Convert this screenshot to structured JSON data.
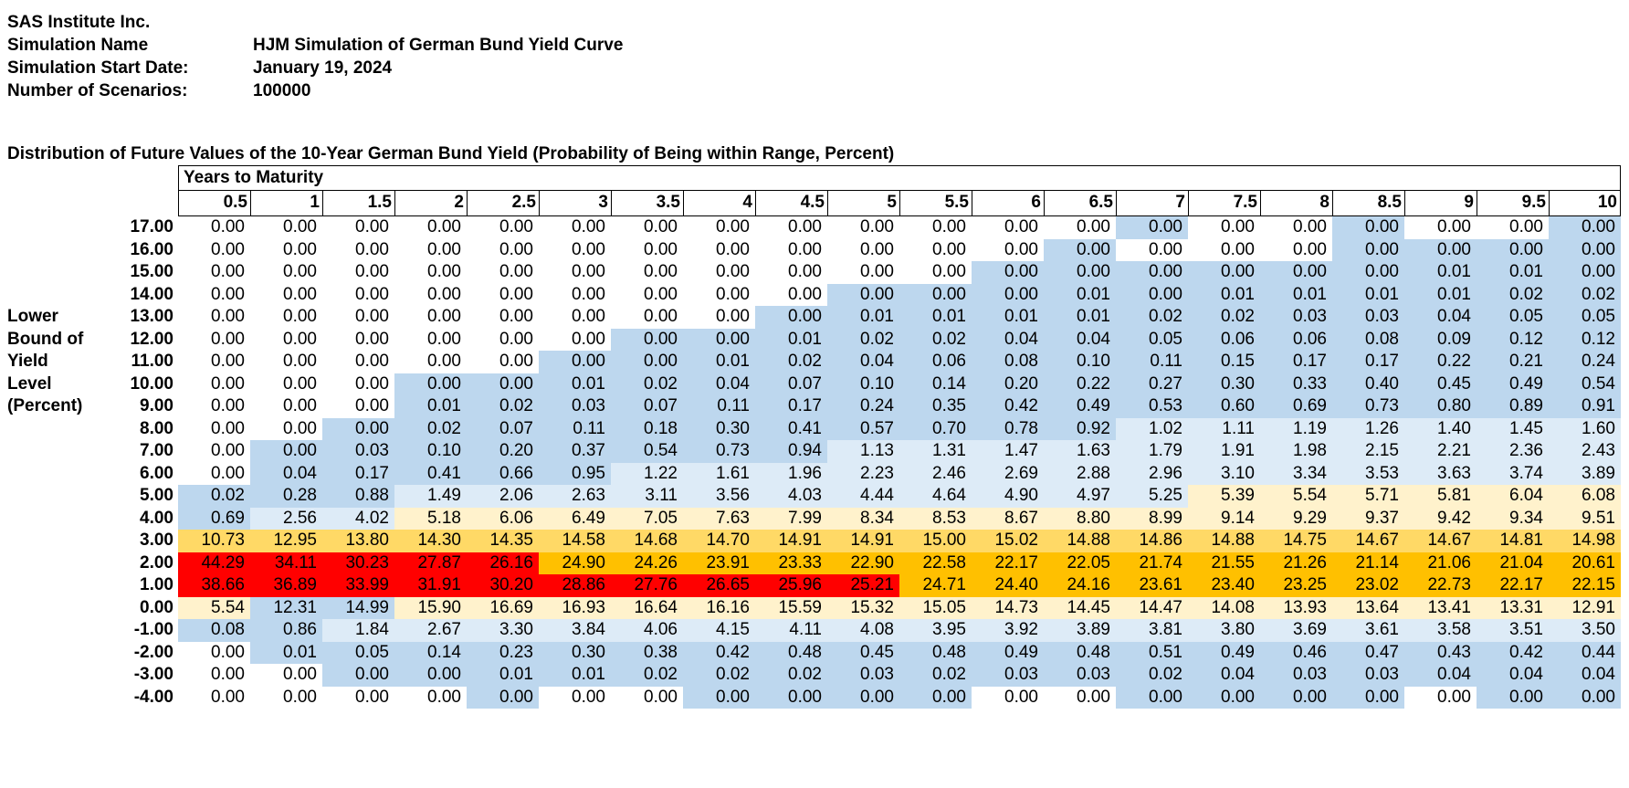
{
  "header": {
    "company": "SAS Institute Inc.",
    "fields": [
      {
        "label": "Simulation Name",
        "value": "HJM Simulation of German Bund Yield Curve"
      },
      {
        "label": "Simulation Start Date:",
        "value": "January 19, 2024"
      },
      {
        "label": "Number of Scenarios:",
        "value": "100000"
      }
    ]
  },
  "table": {
    "title": "Distribution of Future Values of the 10-Year German Bund Yield (Probability of Being within Range, Percent)",
    "column_group_label": "Years to Maturity",
    "row_axis_label": [
      "Lower",
      "Bound of",
      "Yield",
      "Level",
      "(Percent)"
    ],
    "columns": [
      "0.5",
      "1",
      "1.5",
      "2",
      "2.5",
      "3",
      "3.5",
      "4",
      "4.5",
      "5",
      "5.5",
      "6",
      "6.5",
      "7",
      "7.5",
      "8",
      "8.5",
      "9",
      "9.5",
      "10"
    ],
    "rows": [
      {
        "label": "17.00",
        "values": [
          "0.00",
          "0.00",
          "0.00",
          "0.00",
          "0.00",
          "0.00",
          "0.00",
          "0.00",
          "0.00",
          "0.00",
          "0.00",
          "0.00",
          "0.00",
          "0.00",
          "0.00",
          "0.00",
          "0.00",
          "0.00",
          "0.00",
          "0.00"
        ]
      },
      {
        "label": "16.00",
        "values": [
          "0.00",
          "0.00",
          "0.00",
          "0.00",
          "0.00",
          "0.00",
          "0.00",
          "0.00",
          "0.00",
          "0.00",
          "0.00",
          "0.00",
          "0.00",
          "0.00",
          "0.00",
          "0.00",
          "0.00",
          "0.00",
          "0.00",
          "0.00"
        ]
      },
      {
        "label": "15.00",
        "values": [
          "0.00",
          "0.00",
          "0.00",
          "0.00",
          "0.00",
          "0.00",
          "0.00",
          "0.00",
          "0.00",
          "0.00",
          "0.00",
          "0.00",
          "0.00",
          "0.00",
          "0.00",
          "0.00",
          "0.00",
          "0.01",
          "0.01",
          "0.00"
        ]
      },
      {
        "label": "14.00",
        "values": [
          "0.00",
          "0.00",
          "0.00",
          "0.00",
          "0.00",
          "0.00",
          "0.00",
          "0.00",
          "0.00",
          "0.00",
          "0.00",
          "0.00",
          "0.01",
          "0.00",
          "0.01",
          "0.01",
          "0.01",
          "0.01",
          "0.02",
          "0.02"
        ]
      },
      {
        "label": "13.00",
        "values": [
          "0.00",
          "0.00",
          "0.00",
          "0.00",
          "0.00",
          "0.00",
          "0.00",
          "0.00",
          "0.00",
          "0.01",
          "0.01",
          "0.01",
          "0.01",
          "0.02",
          "0.02",
          "0.03",
          "0.03",
          "0.04",
          "0.05",
          "0.05"
        ]
      },
      {
        "label": "12.00",
        "values": [
          "0.00",
          "0.00",
          "0.00",
          "0.00",
          "0.00",
          "0.00",
          "0.00",
          "0.00",
          "0.01",
          "0.02",
          "0.02",
          "0.04",
          "0.04",
          "0.05",
          "0.06",
          "0.06",
          "0.08",
          "0.09",
          "0.12",
          "0.12"
        ]
      },
      {
        "label": "11.00",
        "values": [
          "0.00",
          "0.00",
          "0.00",
          "0.00",
          "0.00",
          "0.00",
          "0.00",
          "0.01",
          "0.02",
          "0.04",
          "0.06",
          "0.08",
          "0.10",
          "0.11",
          "0.15",
          "0.17",
          "0.17",
          "0.22",
          "0.21",
          "0.24"
        ]
      },
      {
        "label": "10.00",
        "values": [
          "0.00",
          "0.00",
          "0.00",
          "0.00",
          "0.00",
          "0.01",
          "0.02",
          "0.04",
          "0.07",
          "0.10",
          "0.14",
          "0.20",
          "0.22",
          "0.27",
          "0.30",
          "0.33",
          "0.40",
          "0.45",
          "0.49",
          "0.54"
        ]
      },
      {
        "label": "9.00",
        "values": [
          "0.00",
          "0.00",
          "0.00",
          "0.01",
          "0.02",
          "0.03",
          "0.07",
          "0.11",
          "0.17",
          "0.24",
          "0.35",
          "0.42",
          "0.49",
          "0.53",
          "0.60",
          "0.69",
          "0.73",
          "0.80",
          "0.89",
          "0.91"
        ]
      },
      {
        "label": "8.00",
        "values": [
          "0.00",
          "0.00",
          "0.00",
          "0.02",
          "0.07",
          "0.11",
          "0.18",
          "0.30",
          "0.41",
          "0.57",
          "0.70",
          "0.78",
          "0.92",
          "1.02",
          "1.11",
          "1.19",
          "1.26",
          "1.40",
          "1.45",
          "1.60"
        ]
      },
      {
        "label": "7.00",
        "values": [
          "0.00",
          "0.00",
          "0.03",
          "0.10",
          "0.20",
          "0.37",
          "0.54",
          "0.73",
          "0.94",
          "1.13",
          "1.31",
          "1.47",
          "1.63",
          "1.79",
          "1.91",
          "1.98",
          "2.15",
          "2.21",
          "2.36",
          "2.43"
        ]
      },
      {
        "label": "6.00",
        "values": [
          "0.00",
          "0.04",
          "0.17",
          "0.41",
          "0.66",
          "0.95",
          "1.22",
          "1.61",
          "1.96",
          "2.23",
          "2.46",
          "2.69",
          "2.88",
          "2.96",
          "3.10",
          "3.34",
          "3.53",
          "3.63",
          "3.74",
          "3.89"
        ]
      },
      {
        "label": "5.00",
        "values": [
          "0.02",
          "0.28",
          "0.88",
          "1.49",
          "2.06",
          "2.63",
          "3.11",
          "3.56",
          "4.03",
          "4.44",
          "4.64",
          "4.90",
          "4.97",
          "5.25",
          "5.39",
          "5.54",
          "5.71",
          "5.81",
          "6.04",
          "6.08"
        ]
      },
      {
        "label": "4.00",
        "values": [
          "0.69",
          "2.56",
          "4.02",
          "5.18",
          "6.06",
          "6.49",
          "7.05",
          "7.63",
          "7.99",
          "8.34",
          "8.53",
          "8.67",
          "8.80",
          "8.99",
          "9.14",
          "9.29",
          "9.37",
          "9.42",
          "9.34",
          "9.51"
        ]
      },
      {
        "label": "3.00",
        "values": [
          "10.73",
          "12.95",
          "13.80",
          "14.30",
          "14.35",
          "14.58",
          "14.68",
          "14.70",
          "14.91",
          "14.91",
          "15.00",
          "15.02",
          "14.88",
          "14.86",
          "14.88",
          "14.75",
          "14.67",
          "14.67",
          "14.81",
          "14.98"
        ]
      },
      {
        "label": "2.00",
        "values": [
          "44.29",
          "34.11",
          "30.23",
          "27.87",
          "26.16",
          "24.90",
          "24.26",
          "23.91",
          "23.33",
          "22.90",
          "22.58",
          "22.17",
          "22.05",
          "21.74",
          "21.55",
          "21.26",
          "21.14",
          "21.06",
          "21.04",
          "20.61"
        ]
      },
      {
        "label": "1.00",
        "values": [
          "38.66",
          "36.89",
          "33.99",
          "31.91",
          "30.20",
          "28.86",
          "27.76",
          "26.65",
          "25.96",
          "25.21",
          "24.71",
          "24.40",
          "24.16",
          "23.61",
          "23.40",
          "23.25",
          "23.02",
          "22.73",
          "22.17",
          "22.15"
        ]
      },
      {
        "label": "0.00",
        "values": [
          "5.54",
          "12.31",
          "14.99",
          "15.90",
          "16.69",
          "16.93",
          "16.64",
          "16.16",
          "15.59",
          "15.32",
          "15.05",
          "14.73",
          "14.45",
          "14.47",
          "14.08",
          "13.93",
          "13.64",
          "13.41",
          "13.31",
          "12.91"
        ]
      },
      {
        "label": "-1.00",
        "values": [
          "0.08",
          "0.86",
          "1.84",
          "2.67",
          "3.30",
          "3.84",
          "4.06",
          "4.15",
          "4.11",
          "4.08",
          "3.95",
          "3.92",
          "3.89",
          "3.81",
          "3.80",
          "3.69",
          "3.61",
          "3.58",
          "3.51",
          "3.50"
        ]
      },
      {
        "label": "-2.00",
        "values": [
          "0.00",
          "0.01",
          "0.05",
          "0.14",
          "0.23",
          "0.30",
          "0.38",
          "0.42",
          "0.48",
          "0.45",
          "0.48",
          "0.49",
          "0.48",
          "0.51",
          "0.49",
          "0.46",
          "0.47",
          "0.43",
          "0.42",
          "0.44"
        ]
      },
      {
        "label": "-3.00",
        "values": [
          "0.00",
          "0.00",
          "0.00",
          "0.00",
          "0.01",
          "0.01",
          "0.02",
          "0.02",
          "0.02",
          "0.03",
          "0.02",
          "0.03",
          "0.03",
          "0.02",
          "0.04",
          "0.03",
          "0.03",
          "0.04",
          "0.04",
          "0.04"
        ]
      },
      {
        "label": "-4.00",
        "values": [
          "0.00",
          "0.00",
          "0.00",
          "0.00",
          "0.00",
          "0.00",
          "0.00",
          "0.00",
          "0.00",
          "0.00",
          "0.00",
          "0.00",
          "0.00",
          "0.00",
          "0.00",
          "0.00",
          "0.00",
          "0.00",
          "0.00",
          "0.00"
        ]
      }
    ],
    "color_classes": [
      "WWWWWWWWWWWWWBWWBWWB",
      "WWWWWWWWWWWWBWWWBBBB",
      "WWWWWWWWWWWBBBBBBBBB",
      "WWWWWWWWWBBBBBBBBBBB",
      "WWWWWWWWBBBBBBBBBBBB",
      "WWWWWWBBBBBBBBBBBBBB",
      "WWWWWBBBBBBBBBBBBBBB",
      "WWWBBBBBBBBBBBBBBBBB",
      "WWWBBBBBBBBBBBBBBBBB",
      "WWBBBBBBBBBBBLLLLLLL",
      "WBBBBBBBBLLLLLLLLLLL",
      "WBBBBBLLLLLLLLLLLLLL",
      "BBBLLLLLLLLLLLYYYYYY",
      "BLLYYYYYYYYYYYYYYYYY",
      "OOOOOOOOOOOOOOOOOOOO",
      "RRRRRGGGGGGGGGGGGGGG",
      "RRRRRRRRRRGGGGGGGGGG",
      "YBBYYYYYYYYYYYYYYYYY",
      "BBLLLLLLLLLLLLLLLLLL",
      "WBBBBBBBBBBBBBBBBBBB",
      "WWBBBBBBBBBBBBBBBBBB",
      "WWWWBWWBBBBWWBBBBWBB"
    ],
    "palette": {
      "W": "#ffffff",
      "B": "#bdd7ee",
      "L": "#ddebf7",
      "Y": "#fff2cc",
      "O": "#ffd966",
      "G": "#ffc000",
      "R": "#ff0000"
    }
  }
}
